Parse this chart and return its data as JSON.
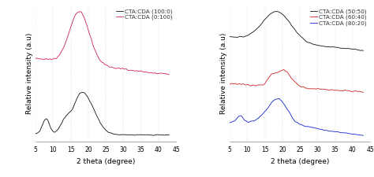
{
  "xlim": [
    5,
    45
  ],
  "xlabel": "2 theta (degree)",
  "ylabel": "Relative intensity (a.u)",
  "left_legend": [
    {
      "label": "CTA:CDA (100:0)",
      "color": "#111111"
    },
    {
      "label": "CTA:CDA (0:100)",
      "color": "#cc2255"
    }
  ],
  "right_legend": [
    {
      "label": "CTA:CDA (50:50)",
      "color": "#111111"
    },
    {
      "label": "CTA:CDA (60:40)",
      "color": "#cc2222"
    },
    {
      "label": "CTA:CDA (80:20)",
      "color": "#1122cc"
    }
  ],
  "xticks": [
    5,
    10,
    15,
    20,
    25,
    30,
    35,
    40,
    45
  ],
  "tick_fontsize": 5.5,
  "label_fontsize": 6.5,
  "legend_fontsize": 5.2,
  "linewidth": 0.6
}
